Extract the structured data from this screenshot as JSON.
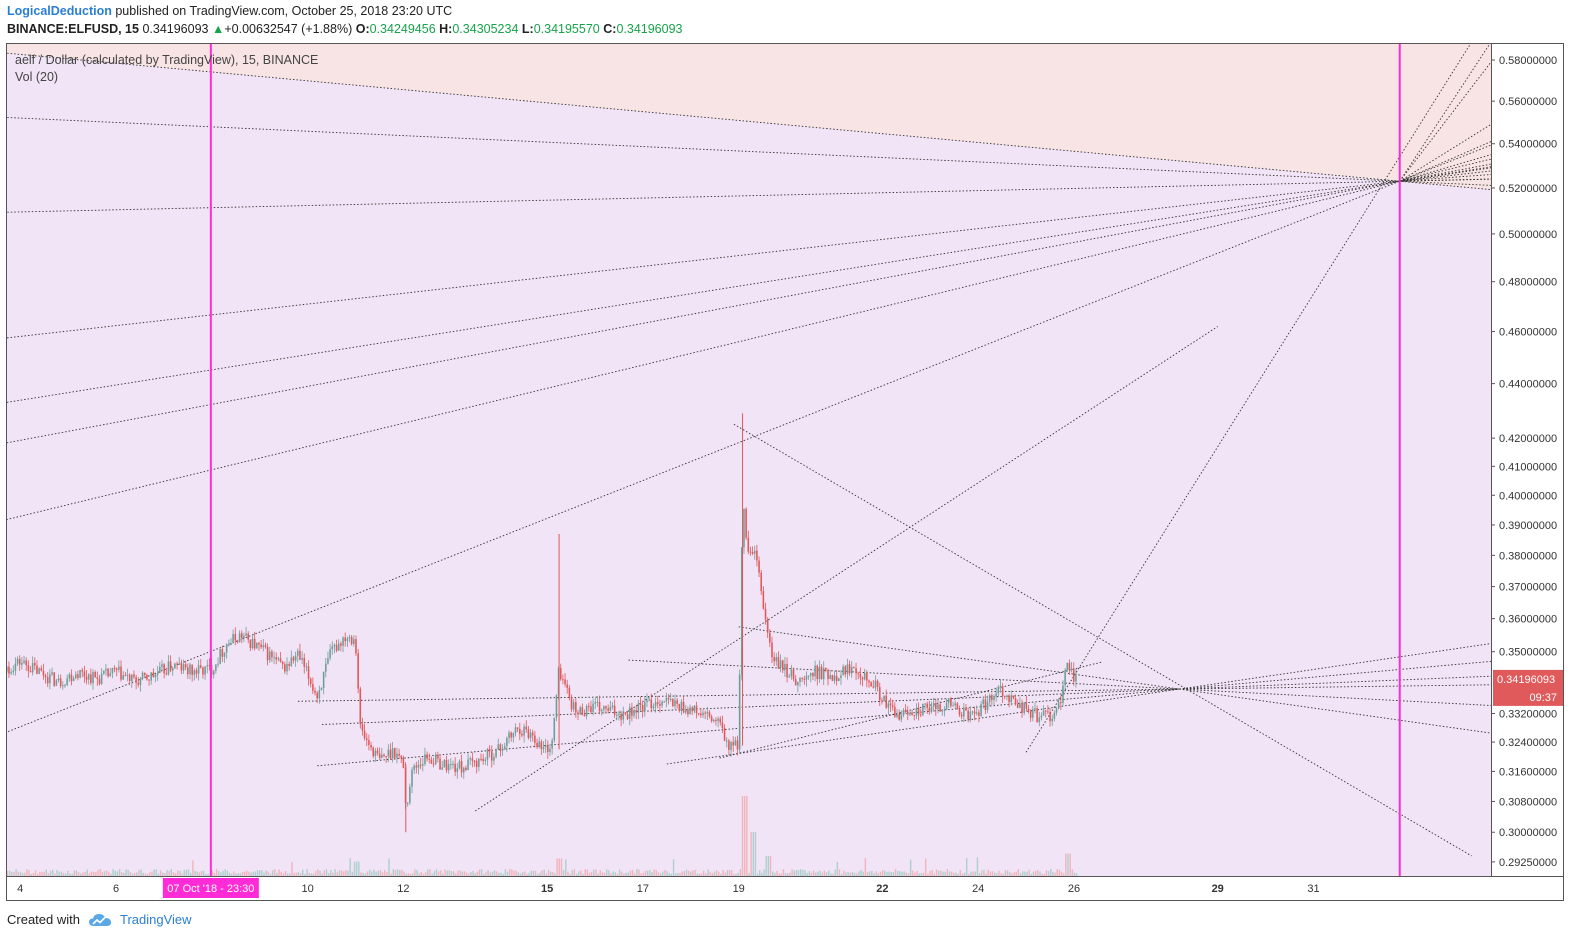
{
  "header": {
    "author": "LogicalDeduction",
    "published_text": "published on TradingView.com, October 25, 2018 23:20 UTC",
    "symbol": "BINANCE:ELFUSD, 15",
    "last": "0.34196093",
    "arrow": "▲",
    "change": "+0.00632547 (+1.88%)",
    "o_label": "O:",
    "o_value": "0.34249456",
    "h_label": "H:",
    "h_value": "0.34305234",
    "l_label": "L:",
    "l_value": "0.34195570",
    "c_label": "C:",
    "c_value": "0.34196093"
  },
  "legend": {
    "title": "aelf / Dollar (calculated by TradingView), 15, BINANCE",
    "volume": "Vol (20)"
  },
  "footer": {
    "created_with": "Created with",
    "brand": "TradingView"
  },
  "colors": {
    "bg_purple": "#f1e4f6",
    "bg_pink": "#f8e4e4",
    "magenta_line": "#ff2bd6",
    "up": "#6f9e99",
    "down": "#e0595b",
    "price_label": "#e0595b"
  },
  "chart_data": {
    "type": "candlestick",
    "symbol": "BINANCE:ELFUSD",
    "interval": "15",
    "y_scale": "log",
    "ylim": [
      0.289,
      0.588
    ],
    "y_ticks": [
      "0.58000000",
      "0.56000000",
      "0.54000000",
      "0.52000000",
      "0.50000000",
      "0.48000000",
      "0.46000000",
      "0.44000000",
      "0.42000000",
      "0.41000000",
      "0.40000000",
      "0.39000000",
      "0.38000000",
      "0.37000000",
      "0.36000000",
      "0.35000000",
      "0.33200000",
      "0.32400000",
      "0.31600000",
      "0.30800000",
      "0.30000000",
      "0.29250000"
    ],
    "x_ticks": [
      {
        "label": "4",
        "day": 4,
        "bold": false
      },
      {
        "label": "6",
        "day": 6,
        "bold": false
      },
      {
        "label": "10",
        "day": 10,
        "bold": false
      },
      {
        "label": "12",
        "day": 12,
        "bold": false
      },
      {
        "label": "15",
        "day": 15,
        "bold": true
      },
      {
        "label": "17",
        "day": 17,
        "bold": false
      },
      {
        "label": "19",
        "day": 19,
        "bold": false
      },
      {
        "label": "22",
        "day": 22,
        "bold": true
      },
      {
        "label": "24",
        "day": 24,
        "bold": false
      },
      {
        "label": "26",
        "day": 26,
        "bold": false
      },
      {
        "label": "29",
        "day": 29,
        "bold": true
      },
      {
        "label": "31",
        "day": 31,
        "bold": false
      }
    ],
    "crosshair_time_label": "07 Oct '18 - 23:30",
    "current_price": "0.34196093",
    "countdown": "09:37",
    "price_path": [
      [
        3.0,
        0.342
      ],
      [
        3.3,
        0.339
      ],
      [
        3.6,
        0.344
      ],
      [
        4.0,
        0.347
      ],
      [
        4.4,
        0.344
      ],
      [
        4.8,
        0.341
      ],
      [
        5.2,
        0.344
      ],
      [
        5.6,
        0.342
      ],
      [
        6.0,
        0.344
      ],
      [
        6.4,
        0.341
      ],
      [
        6.8,
        0.343
      ],
      [
        7.2,
        0.346
      ],
      [
        7.6,
        0.344
      ],
      [
        8.0,
        0.345
      ],
      [
        8.3,
        0.352
      ],
      [
        8.6,
        0.355
      ],
      [
        8.9,
        0.352
      ],
      [
        9.2,
        0.349
      ],
      [
        9.5,
        0.345
      ],
      [
        9.8,
        0.349
      ],
      [
        10.0,
        0.343
      ],
      [
        10.2,
        0.337
      ],
      [
        10.5,
        0.35
      ],
      [
        10.8,
        0.355
      ],
      [
        11.0,
        0.354
      ],
      [
        11.1,
        0.328
      ],
      [
        11.2,
        0.325
      ],
      [
        11.5,
        0.319
      ],
      [
        11.8,
        0.322
      ],
      [
        12.0,
        0.318
      ],
      [
        12.05,
        0.306
      ],
      [
        12.2,
        0.317
      ],
      [
        12.5,
        0.32
      ],
      [
        12.8,
        0.318
      ],
      [
        13.2,
        0.317
      ],
      [
        13.6,
        0.319
      ],
      [
        14.0,
        0.322
      ],
      [
        14.4,
        0.328
      ],
      [
        14.7,
        0.326
      ],
      [
        14.9,
        0.322
      ],
      [
        15.1,
        0.323
      ],
      [
        15.25,
        0.345
      ],
      [
        15.4,
        0.339
      ],
      [
        15.6,
        0.332
      ],
      [
        15.9,
        0.334
      ],
      [
        16.2,
        0.333
      ],
      [
        16.6,
        0.332
      ],
      [
        17.0,
        0.334
      ],
      [
        17.4,
        0.336
      ],
      [
        17.8,
        0.334
      ],
      [
        18.2,
        0.332
      ],
      [
        18.6,
        0.329
      ],
      [
        18.8,
        0.322
      ],
      [
        19.0,
        0.324
      ],
      [
        19.08,
        0.398
      ],
      [
        19.2,
        0.38
      ],
      [
        19.35,
        0.38
      ],
      [
        19.5,
        0.365
      ],
      [
        19.7,
        0.348
      ],
      [
        20.0,
        0.344
      ],
      [
        20.3,
        0.341
      ],
      [
        20.6,
        0.344
      ],
      [
        21.0,
        0.343
      ],
      [
        21.4,
        0.346
      ],
      [
        21.8,
        0.341
      ],
      [
        22.0,
        0.336
      ],
      [
        22.3,
        0.331
      ],
      [
        22.6,
        0.333
      ],
      [
        23.0,
        0.333
      ],
      [
        23.4,
        0.335
      ],
      [
        23.8,
        0.331
      ],
      [
        24.2,
        0.335
      ],
      [
        24.4,
        0.34
      ],
      [
        24.7,
        0.336
      ],
      [
        25.0,
        0.333
      ],
      [
        25.3,
        0.331
      ],
      [
        25.6,
        0.332
      ],
      [
        25.75,
        0.336
      ],
      [
        25.85,
        0.347
      ],
      [
        26.0,
        0.343
      ],
      [
        26.05,
        0.342
      ]
    ],
    "volume_spikes": [
      [
        11.0,
        0.18
      ],
      [
        15.25,
        0.22
      ],
      [
        19.1,
        1.0
      ],
      [
        19.3,
        0.55
      ],
      [
        19.6,
        0.25
      ],
      [
        25.85,
        0.28
      ]
    ],
    "drawings": {
      "vertical_lines_day": [
        7.98,
        32.8
      ],
      "fan_anchor": {
        "day": 32.8,
        "price": 0.523
      },
      "fan_left_prices_day3": [
        0.585,
        0.553,
        0.509,
        0.456,
        0.431,
        0.416,
        0.389,
        0.323
      ],
      "fan_right_prices_edge": [
        0.589,
        0.579,
        0.549,
        0.541,
        0.535,
        0.529,
        0.526,
        0.524
      ],
      "convergence_point": {
        "day": 28.2,
        "price": 0.339
      },
      "converging_lines": [
        [
          [
            9.8,
            0.3355
          ],
          [
            29.0,
            0.3395
          ]
        ],
        [
          [
            10.3,
            0.3289
          ],
          [
            29.0,
            0.3392
          ]
        ],
        [
          [
            10.2,
            0.3175
          ],
          [
            29.0,
            0.3385
          ]
        ],
        [
          [
            17.5,
            0.318
          ],
          [
            29.0,
            0.3388
          ]
        ],
        [
          [
            19.0,
            0.3575
          ],
          [
            29.0,
            0.338
          ]
        ],
        [
          [
            16.7,
            0.3475
          ],
          [
            29.0,
            0.3383
          ]
        ]
      ],
      "cross_lines": [
        [
          [
            18.9,
            0.425
          ],
          [
            34.3,
            0.294
          ]
        ],
        [
          [
            13.5,
            0.3055
          ],
          [
            29.0,
            0.462
          ]
        ],
        [
          [
            25.0,
            0.3212
          ],
          [
            34.3,
            0.589
          ]
        ],
        [
          [
            18.6,
            0.3196
          ],
          [
            26.6,
            0.347
          ]
        ]
      ]
    }
  }
}
